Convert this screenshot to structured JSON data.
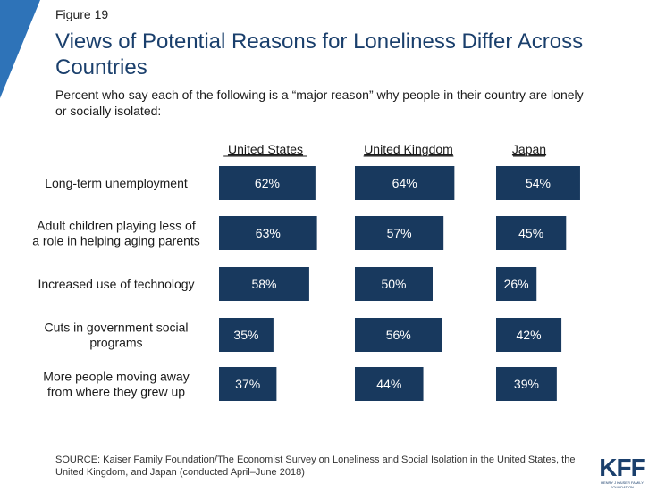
{
  "figure_label": "Figure 19",
  "title": "Views of Potential Reasons for Loneliness Differ Across Countries",
  "subtitle": "Percent who say each of the following is a “major reason” why people in their country are lonely or socially isolated:",
  "source": "SOURCE: Kaiser Family Foundation/The Economist Survey on Loneliness and Social Isolation in the United States, the United Kingdom, and Japan (conducted April–June 2018)",
  "logo": {
    "word": "KFF",
    "subtitle": "HENRY J KAISER FAMILY FOUNDATION"
  },
  "colors": {
    "bar": "#18395e",
    "title": "#1a3f6c",
    "accent": "#2e73b8"
  },
  "chart_data": {
    "type": "bar",
    "orientation": "horizontal",
    "categories": [
      "Long-term unemployment",
      "Adult children playing less of a role in helping aging parents",
      "Increased use of technology",
      "Cuts in government social programs",
      "More people moving away from where they grew up"
    ],
    "category_lines": [
      [
        "Long-term unemployment"
      ],
      [
        "Adult children playing less of",
        "a role in helping aging parents"
      ],
      [
        "Increased use of technology"
      ],
      [
        "Cuts in government social",
        "programs"
      ],
      [
        "More people moving away",
        "from where they grew up"
      ]
    ],
    "series": [
      {
        "name": "United States",
        "values": [
          62,
          63,
          58,
          35,
          37
        ]
      },
      {
        "name": "United Kingdom",
        "values": [
          64,
          57,
          50,
          56,
          44
        ]
      },
      {
        "name": "Japan",
        "values": [
          54,
          45,
          26,
          42,
          39
        ]
      }
    ],
    "value_suffix": "%",
    "xlim": [
      0,
      100
    ]
  }
}
